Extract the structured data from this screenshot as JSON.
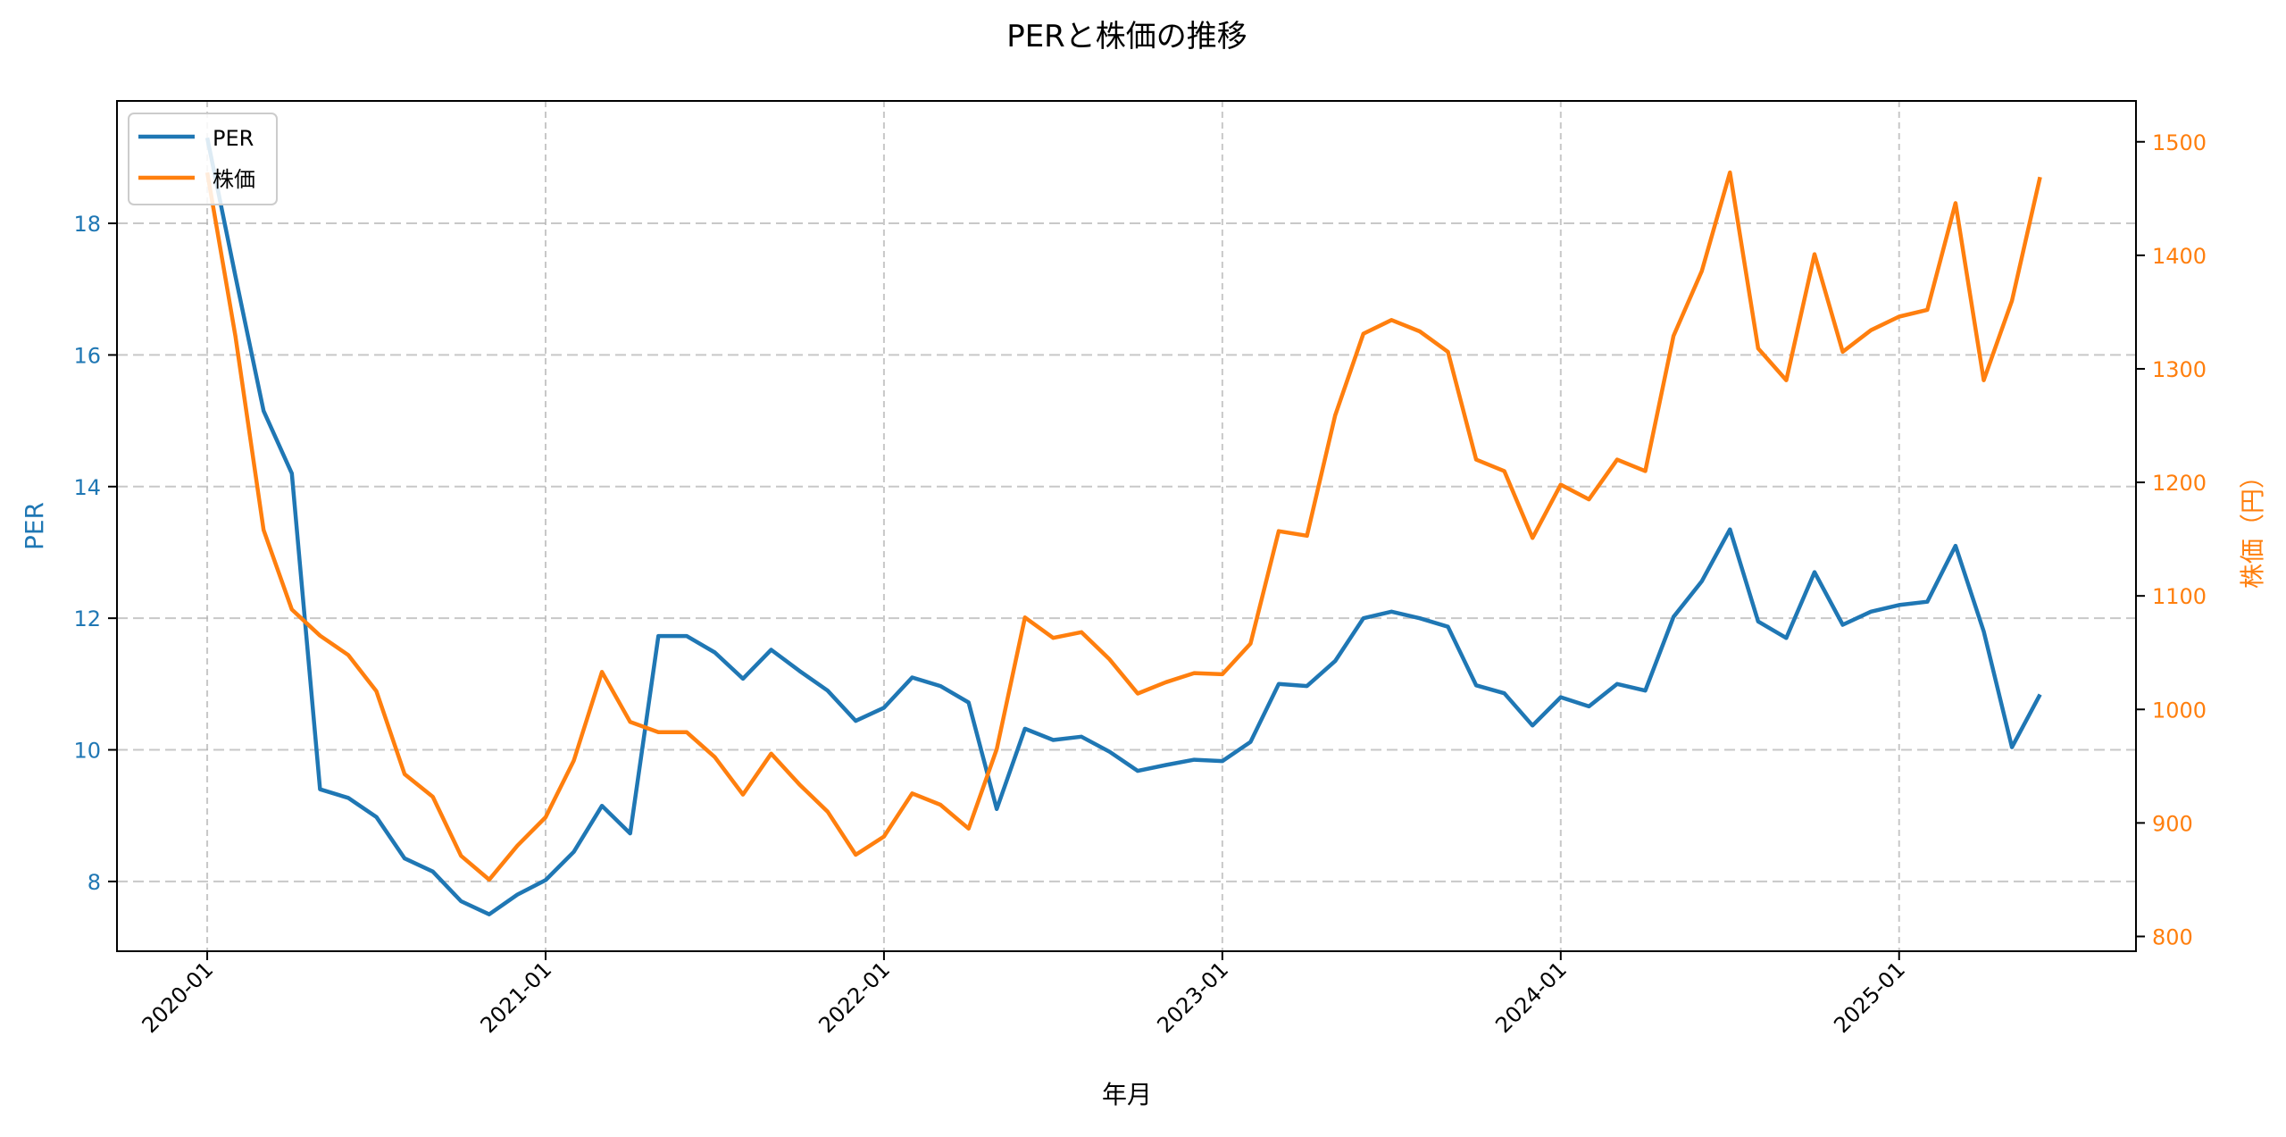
{
  "chart_data": {
    "type": "line",
    "title": "PERと株価の推移",
    "xlabel": "年月",
    "ylabel_left": "PER",
    "ylabel_right": "株価（円）",
    "x_start": "2020-01",
    "x": [
      "2020-01",
      "2020-02",
      "2020-03",
      "2020-04",
      "2020-05",
      "2020-06",
      "2020-07",
      "2020-08",
      "2020-09",
      "2020-10",
      "2020-11",
      "2020-12",
      "2021-01",
      "2021-02",
      "2021-03",
      "2021-04",
      "2021-05",
      "2021-06",
      "2021-07",
      "2021-08",
      "2021-09",
      "2021-10",
      "2021-11",
      "2021-12",
      "2022-01",
      "2022-02",
      "2022-03",
      "2022-04",
      "2022-05",
      "2022-06",
      "2022-07",
      "2022-08",
      "2022-09",
      "2022-10",
      "2022-11",
      "2022-12",
      "2023-01",
      "2023-02",
      "2023-03",
      "2023-04",
      "2023-05",
      "2023-06",
      "2023-07",
      "2023-08",
      "2023-09",
      "2023-10",
      "2023-11",
      "2023-12",
      "2024-01",
      "2024-02",
      "2024-03",
      "2024-04",
      "2024-05",
      "2024-06",
      "2024-07",
      "2024-08",
      "2024-09",
      "2024-10",
      "2024-11",
      "2024-12",
      "2025-01",
      "2025-02",
      "2025-03",
      "2025-04",
      "2025-05",
      "2025-06"
    ],
    "xticks": [
      "2020-01",
      "2021-01",
      "2022-01",
      "2023-01",
      "2024-01",
      "2025-01"
    ],
    "yticks_left": [
      8,
      10,
      12,
      14,
      16,
      18
    ],
    "yticks_right": [
      800,
      900,
      1000,
      1100,
      1200,
      1300,
      1400,
      1500
    ],
    "ylim_left": [
      6.94,
      19.86
    ],
    "ylim_right": [
      787,
      1536
    ],
    "xlim_months": [
      -3.2,
      68.4
    ],
    "grid": true,
    "legend_position": "top-left",
    "series": [
      {
        "name": "PER",
        "axis": "left",
        "color": "#1f77b4",
        "values": [
          19.3,
          17.2,
          15.15,
          14.2,
          9.4,
          9.27,
          8.98,
          8.35,
          8.15,
          7.7,
          7.5,
          7.8,
          8.02,
          8.45,
          9.15,
          8.73,
          11.73,
          11.73,
          11.48,
          11.08,
          11.52,
          11.2,
          10.9,
          10.44,
          10.64,
          11.1,
          10.97,
          10.72,
          9.1,
          10.32,
          10.15,
          10.2,
          9.97,
          9.68,
          9.77,
          9.85,
          9.83,
          10.12,
          11.0,
          10.97,
          11.35,
          12.0,
          12.1,
          12.0,
          11.87,
          10.98,
          10.86,
          10.37,
          10.8,
          10.66,
          11.0,
          10.9,
          12.02,
          12.56,
          13.35,
          11.95,
          11.7,
          12.7,
          11.9,
          12.1,
          12.2,
          12.25,
          13.1,
          11.8,
          10.04,
          10.84
        ]
      },
      {
        "name": "株価",
        "axis": "right",
        "color": "#ff7f0e",
        "values": [
          1473,
          1329,
          1158,
          1088,
          1065,
          1048,
          1016,
          943,
          923,
          871,
          850,
          880,
          905,
          955,
          1033,
          989,
          980,
          980,
          958,
          925,
          961,
          934,
          910,
          872,
          888,
          926,
          916,
          895,
          965,
          1081,
          1063,
          1068,
          1044,
          1014,
          1024,
          1032,
          1031,
          1058,
          1157,
          1153,
          1259,
          1331,
          1343,
          1333,
          1315,
          1220,
          1210,
          1151,
          1198,
          1185,
          1220,
          1210,
          1329,
          1386,
          1473,
          1318,
          1290,
          1401,
          1315,
          1334,
          1346,
          1352,
          1446,
          1290,
          1360,
          1469
        ]
      }
    ]
  }
}
